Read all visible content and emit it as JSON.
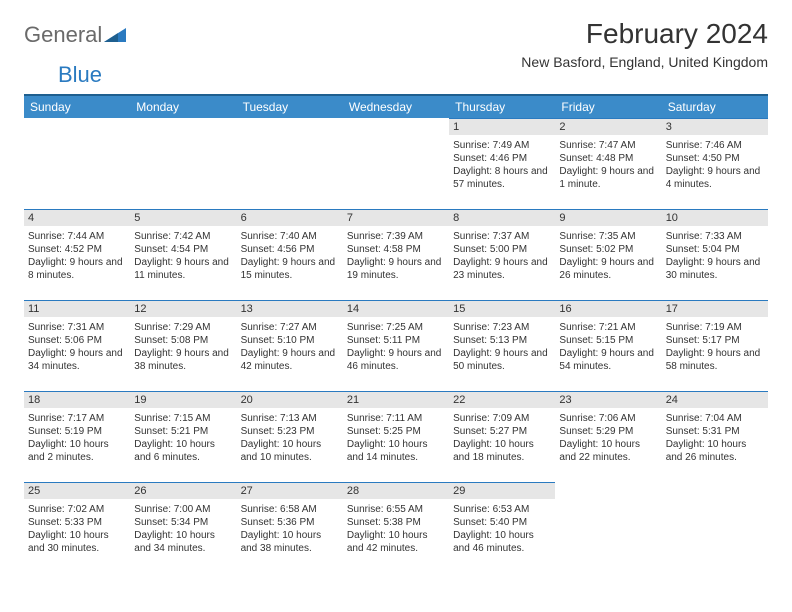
{
  "brand": {
    "part1": "General",
    "part2": "Blue"
  },
  "title": "February 2024",
  "location": "New Basford, England, United Kingdom",
  "colors": {
    "header_bg": "#3b8bc9",
    "header_border": "#1e5f8f",
    "daynum_bg": "#e6e6e6",
    "daynum_border": "#2a7ac0",
    "brand_gray": "#6a6a6a",
    "brand_blue": "#2a7ac0"
  },
  "day_headers": [
    "Sunday",
    "Monday",
    "Tuesday",
    "Wednesday",
    "Thursday",
    "Friday",
    "Saturday"
  ],
  "weeks": [
    [
      null,
      null,
      null,
      null,
      {
        "n": "1",
        "sunrise": "Sunrise: 7:49 AM",
        "sunset": "Sunset: 4:46 PM",
        "day": "Daylight: 8 hours and 57 minutes."
      },
      {
        "n": "2",
        "sunrise": "Sunrise: 7:47 AM",
        "sunset": "Sunset: 4:48 PM",
        "day": "Daylight: 9 hours and 1 minute."
      },
      {
        "n": "3",
        "sunrise": "Sunrise: 7:46 AM",
        "sunset": "Sunset: 4:50 PM",
        "day": "Daylight: 9 hours and 4 minutes."
      }
    ],
    [
      {
        "n": "4",
        "sunrise": "Sunrise: 7:44 AM",
        "sunset": "Sunset: 4:52 PM",
        "day": "Daylight: 9 hours and 8 minutes."
      },
      {
        "n": "5",
        "sunrise": "Sunrise: 7:42 AM",
        "sunset": "Sunset: 4:54 PM",
        "day": "Daylight: 9 hours and 11 minutes."
      },
      {
        "n": "6",
        "sunrise": "Sunrise: 7:40 AM",
        "sunset": "Sunset: 4:56 PM",
        "day": "Daylight: 9 hours and 15 minutes."
      },
      {
        "n": "7",
        "sunrise": "Sunrise: 7:39 AM",
        "sunset": "Sunset: 4:58 PM",
        "day": "Daylight: 9 hours and 19 minutes."
      },
      {
        "n": "8",
        "sunrise": "Sunrise: 7:37 AM",
        "sunset": "Sunset: 5:00 PM",
        "day": "Daylight: 9 hours and 23 minutes."
      },
      {
        "n": "9",
        "sunrise": "Sunrise: 7:35 AM",
        "sunset": "Sunset: 5:02 PM",
        "day": "Daylight: 9 hours and 26 minutes."
      },
      {
        "n": "10",
        "sunrise": "Sunrise: 7:33 AM",
        "sunset": "Sunset: 5:04 PM",
        "day": "Daylight: 9 hours and 30 minutes."
      }
    ],
    [
      {
        "n": "11",
        "sunrise": "Sunrise: 7:31 AM",
        "sunset": "Sunset: 5:06 PM",
        "day": "Daylight: 9 hours and 34 minutes."
      },
      {
        "n": "12",
        "sunrise": "Sunrise: 7:29 AM",
        "sunset": "Sunset: 5:08 PM",
        "day": "Daylight: 9 hours and 38 minutes."
      },
      {
        "n": "13",
        "sunrise": "Sunrise: 7:27 AM",
        "sunset": "Sunset: 5:10 PM",
        "day": "Daylight: 9 hours and 42 minutes."
      },
      {
        "n": "14",
        "sunrise": "Sunrise: 7:25 AM",
        "sunset": "Sunset: 5:11 PM",
        "day": "Daylight: 9 hours and 46 minutes."
      },
      {
        "n": "15",
        "sunrise": "Sunrise: 7:23 AM",
        "sunset": "Sunset: 5:13 PM",
        "day": "Daylight: 9 hours and 50 minutes."
      },
      {
        "n": "16",
        "sunrise": "Sunrise: 7:21 AM",
        "sunset": "Sunset: 5:15 PM",
        "day": "Daylight: 9 hours and 54 minutes."
      },
      {
        "n": "17",
        "sunrise": "Sunrise: 7:19 AM",
        "sunset": "Sunset: 5:17 PM",
        "day": "Daylight: 9 hours and 58 minutes."
      }
    ],
    [
      {
        "n": "18",
        "sunrise": "Sunrise: 7:17 AM",
        "sunset": "Sunset: 5:19 PM",
        "day": "Daylight: 10 hours and 2 minutes."
      },
      {
        "n": "19",
        "sunrise": "Sunrise: 7:15 AM",
        "sunset": "Sunset: 5:21 PM",
        "day": "Daylight: 10 hours and 6 minutes."
      },
      {
        "n": "20",
        "sunrise": "Sunrise: 7:13 AM",
        "sunset": "Sunset: 5:23 PM",
        "day": "Daylight: 10 hours and 10 minutes."
      },
      {
        "n": "21",
        "sunrise": "Sunrise: 7:11 AM",
        "sunset": "Sunset: 5:25 PM",
        "day": "Daylight: 10 hours and 14 minutes."
      },
      {
        "n": "22",
        "sunrise": "Sunrise: 7:09 AM",
        "sunset": "Sunset: 5:27 PM",
        "day": "Daylight: 10 hours and 18 minutes."
      },
      {
        "n": "23",
        "sunrise": "Sunrise: 7:06 AM",
        "sunset": "Sunset: 5:29 PM",
        "day": "Daylight: 10 hours and 22 minutes."
      },
      {
        "n": "24",
        "sunrise": "Sunrise: 7:04 AM",
        "sunset": "Sunset: 5:31 PM",
        "day": "Daylight: 10 hours and 26 minutes."
      }
    ],
    [
      {
        "n": "25",
        "sunrise": "Sunrise: 7:02 AM",
        "sunset": "Sunset: 5:33 PM",
        "day": "Daylight: 10 hours and 30 minutes."
      },
      {
        "n": "26",
        "sunrise": "Sunrise: 7:00 AM",
        "sunset": "Sunset: 5:34 PM",
        "day": "Daylight: 10 hours and 34 minutes."
      },
      {
        "n": "27",
        "sunrise": "Sunrise: 6:58 AM",
        "sunset": "Sunset: 5:36 PM",
        "day": "Daylight: 10 hours and 38 minutes."
      },
      {
        "n": "28",
        "sunrise": "Sunrise: 6:55 AM",
        "sunset": "Sunset: 5:38 PM",
        "day": "Daylight: 10 hours and 42 minutes."
      },
      {
        "n": "29",
        "sunrise": "Sunrise: 6:53 AM",
        "sunset": "Sunset: 5:40 PM",
        "day": "Daylight: 10 hours and 46 minutes."
      },
      null,
      null
    ]
  ]
}
